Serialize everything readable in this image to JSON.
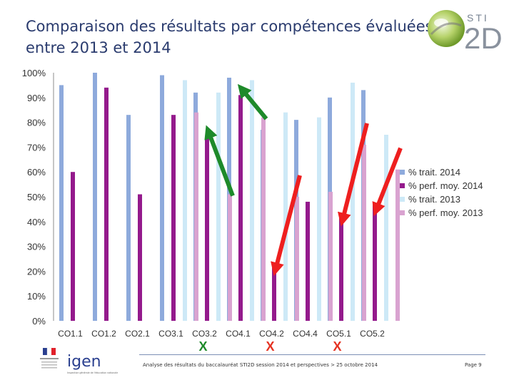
{
  "header": {
    "title_line1": "Comparaison des résultats par compétences évaluées",
    "title_line2": "entre 2013 et 2014",
    "logo_small": "STI",
    "logo_big": "2D"
  },
  "colors": {
    "trait_2014": "#8eaadc",
    "perf_2014": "#941a8c",
    "trait_2013": "#cde9f7",
    "perf_2013": "#d9a3d0",
    "arrow_up": "#1e8a2a",
    "arrow_down": "#ee1f1f",
    "mark": "#1e8a2a",
    "mark_down": "#e53222"
  },
  "chart_data": {
    "type": "bar",
    "categories": [
      "CO1.1",
      "CO1.2",
      "CO2.1",
      "CO3.1",
      "CO3.2",
      "CO4.1",
      "CO4.2",
      "CO4.4",
      "CO5.1",
      "CO5.2"
    ],
    "series": [
      {
        "name": "% trait. 2014",
        "values": [
          95,
          100,
          83,
          99,
          92,
          98,
          77,
          81,
          90,
          93
        ]
      },
      {
        "name": "% perf. moy. 2014",
        "values": [
          60,
          94,
          51,
          83,
          74,
          91,
          23,
          48,
          43,
          47
        ]
      },
      {
        "name": "% trait. 2013",
        "values": [
          null,
          null,
          null,
          97,
          92,
          97,
          84,
          82,
          96,
          75
        ]
      },
      {
        "name": "% perf. moy. 2013",
        "values": [
          null,
          null,
          null,
          84,
          51,
          82,
          50,
          52,
          71,
          61
        ]
      }
    ],
    "y_ticks": [
      "0%",
      "10%",
      "20%",
      "30%",
      "40%",
      "50%",
      "60%",
      "70%",
      "80%",
      "90%",
      "100%"
    ],
    "ylim": [
      0,
      100
    ],
    "legend_position": "right",
    "arrows": [
      {
        "category": "CO3.2",
        "direction": "up",
        "from": 51,
        "to": 74
      },
      {
        "category": "CO4.1",
        "direction": "up",
        "from": 82,
        "to": 91
      },
      {
        "category": "CO4.2",
        "direction": "down",
        "from": 50,
        "to": 23
      },
      {
        "category": "CO5.1",
        "direction": "down",
        "from": 71,
        "to": 43
      },
      {
        "category": "CO5.2",
        "direction": "down",
        "from": 61,
        "to": 47
      }
    ],
    "marks": [
      {
        "category": "CO3.2",
        "label": "X",
        "color_key": "mark"
      },
      {
        "category": "CO4.2",
        "label": "X",
        "color_key": "mark_down"
      },
      {
        "category": "CO5.1",
        "label": "X",
        "color_key": "mark_down"
      }
    ]
  },
  "footer": {
    "text": "Analyse des résultats du baccalauréat STI2D session 2014 et perspectives > 25 octobre 2014",
    "page": "Page 9",
    "igen": "igen",
    "igen_sub": "Inspection générale de l'éducation nationale"
  }
}
